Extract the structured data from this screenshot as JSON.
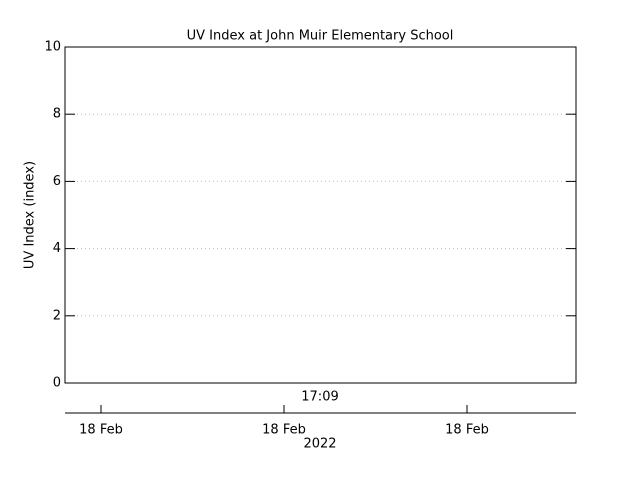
{
  "chart_data": {
    "type": "line",
    "title": "UV Index at John Muir Elementary School",
    "ylabel": "UV Index (index)",
    "ylim": [
      0,
      10
    ],
    "yticks": [
      0,
      2,
      4,
      6,
      8,
      10
    ],
    "grid": true,
    "x_tick_labels": [
      "18 Feb",
      "18 Feb",
      "18 Feb"
    ],
    "annotation": "17:09",
    "xlabel": "2022",
    "series": []
  }
}
